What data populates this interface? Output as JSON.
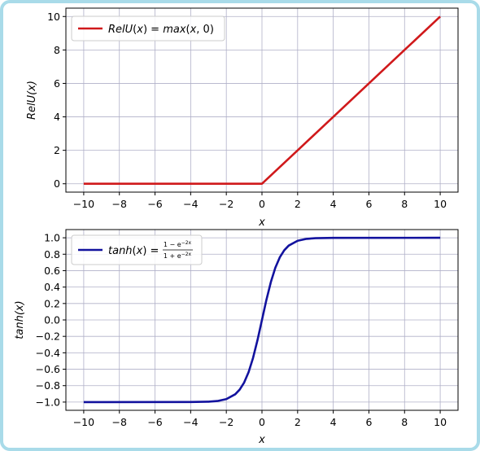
{
  "frame_color": "#a9dbe9",
  "chart_data": [
    {
      "type": "line",
      "xlabel": "x",
      "ylabel": "RelU(x)",
      "xlim": [
        -11,
        11
      ],
      "ylim": [
        -0.5,
        10.5
      ],
      "xticks": [
        -10,
        -8,
        -6,
        -4,
        -2,
        0,
        2,
        4,
        6,
        8,
        10
      ],
      "xtick_labels": [
        "−10",
        "−8",
        "−6",
        "−4",
        "−2",
        "0",
        "2",
        "4",
        "6",
        "8",
        "10"
      ],
      "yticks": [
        0,
        2,
        4,
        6,
        8,
        10
      ],
      "ytick_labels": [
        "0",
        "2",
        "4",
        "6",
        "8",
        "10"
      ],
      "grid": true,
      "legend_position": "top-left",
      "series": [
        {
          "name": "RelU(x) = max(x, 0)",
          "color": "#d0191b",
          "x": [
            -10,
            -8,
            -6,
            -4,
            -2,
            0,
            2,
            4,
            6,
            8,
            10
          ],
          "y": [
            0,
            0,
            0,
            0,
            0,
            0,
            2,
            4,
            6,
            8,
            10
          ]
        }
      ]
    },
    {
      "type": "line",
      "xlabel": "x",
      "ylabel": "tanh(x)",
      "xlim": [
        -11,
        11
      ],
      "ylim": [
        -1.1,
        1.1
      ],
      "xticks": [
        -10,
        -8,
        -6,
        -4,
        -2,
        0,
        2,
        4,
        6,
        8,
        10
      ],
      "xtick_labels": [
        "−10",
        "−8",
        "−6",
        "−4",
        "−2",
        "0",
        "2",
        "4",
        "6",
        "8",
        "10"
      ],
      "yticks": [
        -1.0,
        -0.8,
        -0.6,
        -0.4,
        -0.2,
        0.0,
        0.2,
        0.4,
        0.6,
        0.8,
        1.0
      ],
      "ytick_labels": [
        "−1.0",
        "−0.8",
        "−0.6",
        "−0.4",
        "−0.2",
        "0.0",
        "0.2",
        "0.4",
        "0.6",
        "0.8",
        "1.0"
      ],
      "grid": true,
      "legend_position": "top-left",
      "series": [
        {
          "name": "tanh(x) = (1 − e^−2x) / (1 + e^−2x)",
          "color": "#12129e",
          "x": [
            -10,
            -4,
            -3,
            -2.5,
            -2,
            -1.5,
            -1.25,
            -1,
            -0.75,
            -0.5,
            -0.25,
            0,
            0.25,
            0.5,
            0.75,
            1,
            1.25,
            1.5,
            2,
            2.5,
            3,
            4,
            10
          ],
          "y": [
            -1.0,
            -0.999,
            -0.995,
            -0.987,
            -0.964,
            -0.905,
            -0.848,
            -0.762,
            -0.635,
            -0.462,
            -0.245,
            0.0,
            0.245,
            0.462,
            0.635,
            0.762,
            0.848,
            0.905,
            0.964,
            0.987,
            0.995,
            0.999,
            1.0
          ]
        }
      ]
    }
  ]
}
